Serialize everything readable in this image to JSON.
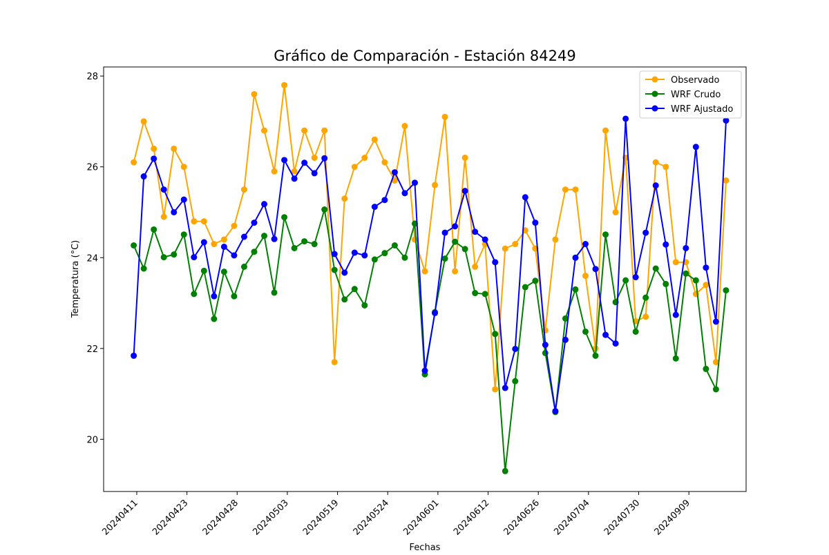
{
  "chart_data": {
    "type": "line",
    "title": "Gráfico de Comparación - Estación 84249",
    "xlabel": "Fechas",
    "ylabel": "Temperatura (°C)",
    "ylim": [
      18.85,
      28.2
    ],
    "xlim": [
      -3.0,
      61.0
    ],
    "yticks": [
      20,
      22,
      24,
      26,
      28
    ],
    "xticks": [
      {
        "pos": 0.3,
        "label": "20240411"
      },
      {
        "pos": 5.3,
        "label": "20240423"
      },
      {
        "pos": 10.3,
        "label": "20240428"
      },
      {
        "pos": 15.3,
        "label": "20240503"
      },
      {
        "pos": 20.3,
        "label": "20240519"
      },
      {
        "pos": 25.3,
        "label": "20240524"
      },
      {
        "pos": 30.3,
        "label": "20240601"
      },
      {
        "pos": 35.3,
        "label": "20240612"
      },
      {
        "pos": 40.3,
        "label": "20240626"
      },
      {
        "pos": 45.3,
        "label": "20240704"
      },
      {
        "pos": 50.3,
        "label": "20240730"
      },
      {
        "pos": 55.3,
        "label": "20240909"
      }
    ],
    "grid": false,
    "legend_position": "top-right",
    "series": [
      {
        "name": "Observado",
        "color": "#ffa500",
        "values": [
          26.1,
          27.0,
          26.4,
          24.9,
          26.4,
          26.0,
          24.8,
          24.8,
          24.3,
          24.4,
          24.7,
          25.5,
          27.6,
          26.8,
          25.9,
          27.8,
          25.9,
          26.8,
          26.2,
          26.8,
          21.7,
          25.3,
          26.0,
          26.2,
          26.6,
          26.1,
          25.7,
          26.9,
          24.4,
          23.7,
          25.6,
          27.1,
          23.7,
          26.2,
          23.8,
          24.3,
          21.1,
          24.2,
          24.3,
          24.6,
          24.2,
          22.4,
          24.4,
          25.5,
          25.5,
          23.6,
          22.0,
          26.8,
          25.0,
          26.2,
          22.6,
          22.7,
          26.1,
          26.0,
          23.9,
          23.9,
          23.2,
          23.4,
          21.7,
          25.7
        ]
      },
      {
        "name": "WRF Crudo",
        "color": "#008000",
        "values": [
          24.27,
          23.76,
          24.62,
          24.01,
          24.07,
          24.51,
          23.2,
          23.71,
          22.65,
          23.69,
          23.15,
          23.8,
          24.13,
          24.48,
          23.23,
          24.89,
          24.21,
          24.36,
          24.3,
          25.06,
          23.73,
          23.08,
          23.31,
          22.95,
          23.96,
          24.1,
          24.27,
          24.0,
          24.75,
          21.43,
          22.8,
          23.98,
          24.35,
          24.19,
          23.22,
          23.2,
          22.32,
          19.3,
          21.28,
          23.35,
          23.49,
          21.9,
          20.6,
          22.66,
          23.3,
          22.37,
          21.84,
          24.51,
          23.02,
          23.5,
          22.37,
          23.12,
          23.76,
          23.42,
          21.78,
          23.65,
          23.5,
          21.55,
          21.1,
          23.28
        ]
      },
      {
        "name": "WRF Ajustado",
        "color": "#0000ff",
        "values": [
          21.84,
          25.79,
          26.18,
          25.5,
          25.0,
          25.28,
          24.01,
          24.34,
          23.15,
          24.24,
          24.05,
          24.46,
          24.77,
          25.18,
          24.41,
          26.15,
          25.74,
          26.09,
          25.86,
          26.19,
          24.08,
          23.67,
          24.11,
          24.05,
          25.12,
          25.27,
          25.88,
          25.42,
          25.65,
          21.51,
          22.78,
          24.55,
          24.69,
          25.47,
          24.57,
          24.4,
          23.9,
          21.13,
          21.99,
          25.33,
          24.77,
          22.08,
          20.62,
          22.19,
          24.0,
          24.3,
          23.75,
          22.3,
          22.11,
          27.06,
          23.57,
          24.55,
          25.59,
          24.29,
          22.74,
          24.21,
          26.44,
          23.78,
          22.59,
          27.02
        ]
      }
    ]
  }
}
